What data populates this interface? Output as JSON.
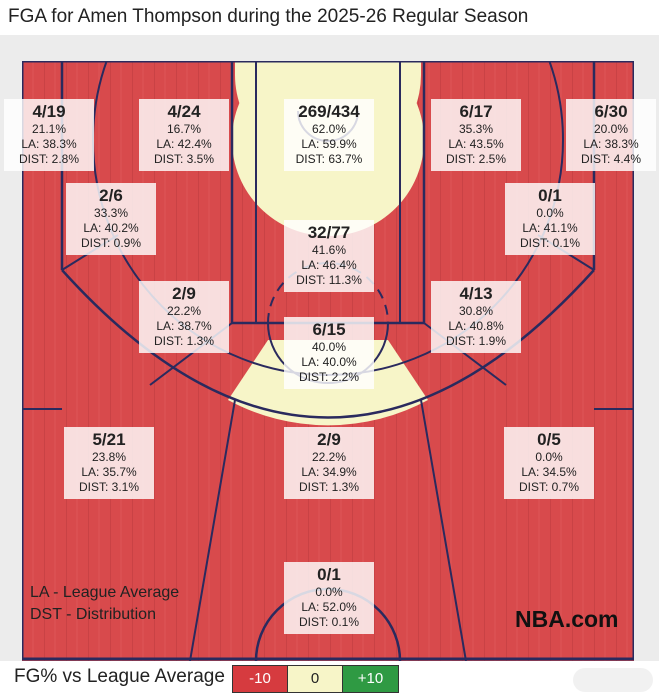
{
  "title": "FGA for Amen Thompson during the 2025-26 Regular Season",
  "colors": {
    "below": "#d84a4c",
    "neutral": "#f7f5c8",
    "above": "#2f9a43",
    "lines": "#2a2a5e"
  },
  "zones": [
    {
      "id": "left-corner-three",
      "made": "4/19",
      "pct": "21.1%",
      "la": "LA: 38.3%",
      "dist": "DIST: 2.8%"
    },
    {
      "id": "left-wing-three",
      "made": "4/24",
      "pct": "16.7%",
      "la": "LA: 42.4%",
      "dist": "DIST: 3.5%"
    },
    {
      "id": "restricted-area",
      "made": "269/434",
      "pct": "62.0%",
      "la": "LA: 59.9%",
      "dist": "DIST: 63.7%"
    },
    {
      "id": "right-wing-three",
      "made": "6/17",
      "pct": "35.3%",
      "la": "LA: 43.5%",
      "dist": "DIST: 2.5%"
    },
    {
      "id": "right-corner-three",
      "made": "6/30",
      "pct": "20.0%",
      "la": "LA: 38.3%",
      "dist": "DIST: 4.4%"
    },
    {
      "id": "left-baseline-mid",
      "made": "2/6",
      "pct": "33.3%",
      "la": "LA: 40.2%",
      "dist": "DIST: 0.9%"
    },
    {
      "id": "right-baseline-mid",
      "made": "0/1",
      "pct": "0.0%",
      "la": "LA: 41.1%",
      "dist": "DIST: 0.1%"
    },
    {
      "id": "paint-non-ra",
      "made": "32/77",
      "pct": "41.6%",
      "la": "LA: 46.4%",
      "dist": "DIST: 11.3%"
    },
    {
      "id": "left-elbow-mid",
      "made": "2/9",
      "pct": "22.2%",
      "la": "LA: 38.7%",
      "dist": "DIST: 1.3%"
    },
    {
      "id": "right-elbow-mid",
      "made": "4/13",
      "pct": "30.8%",
      "la": "LA: 40.8%",
      "dist": "DIST: 1.9%"
    },
    {
      "id": "top-key-mid",
      "made": "6/15",
      "pct": "40.0%",
      "la": "LA: 40.0%",
      "dist": "DIST: 2.2%"
    },
    {
      "id": "left-above-break-three",
      "made": "5/21",
      "pct": "23.8%",
      "la": "LA: 35.7%",
      "dist": "DIST: 3.1%"
    },
    {
      "id": "center-above-break-three",
      "made": "2/9",
      "pct": "22.2%",
      "la": "LA: 34.9%",
      "dist": "DIST: 1.3%"
    },
    {
      "id": "right-above-break-three",
      "made": "0/5",
      "pct": "0.0%",
      "la": "LA: 34.5%",
      "dist": "DIST: 0.7%"
    },
    {
      "id": "backcourt",
      "made": "0/1",
      "pct": "0.0%",
      "la": "LA: 52.0%",
      "dist": "DIST: 0.1%"
    }
  ],
  "legend": {
    "la": "LA - League Average",
    "dst": "DST - Distribution"
  },
  "logo_text": "NBA.com",
  "footer": {
    "label": "FG% vs League Average",
    "neg": "-10",
    "zero": "0",
    "pos": "+10"
  }
}
